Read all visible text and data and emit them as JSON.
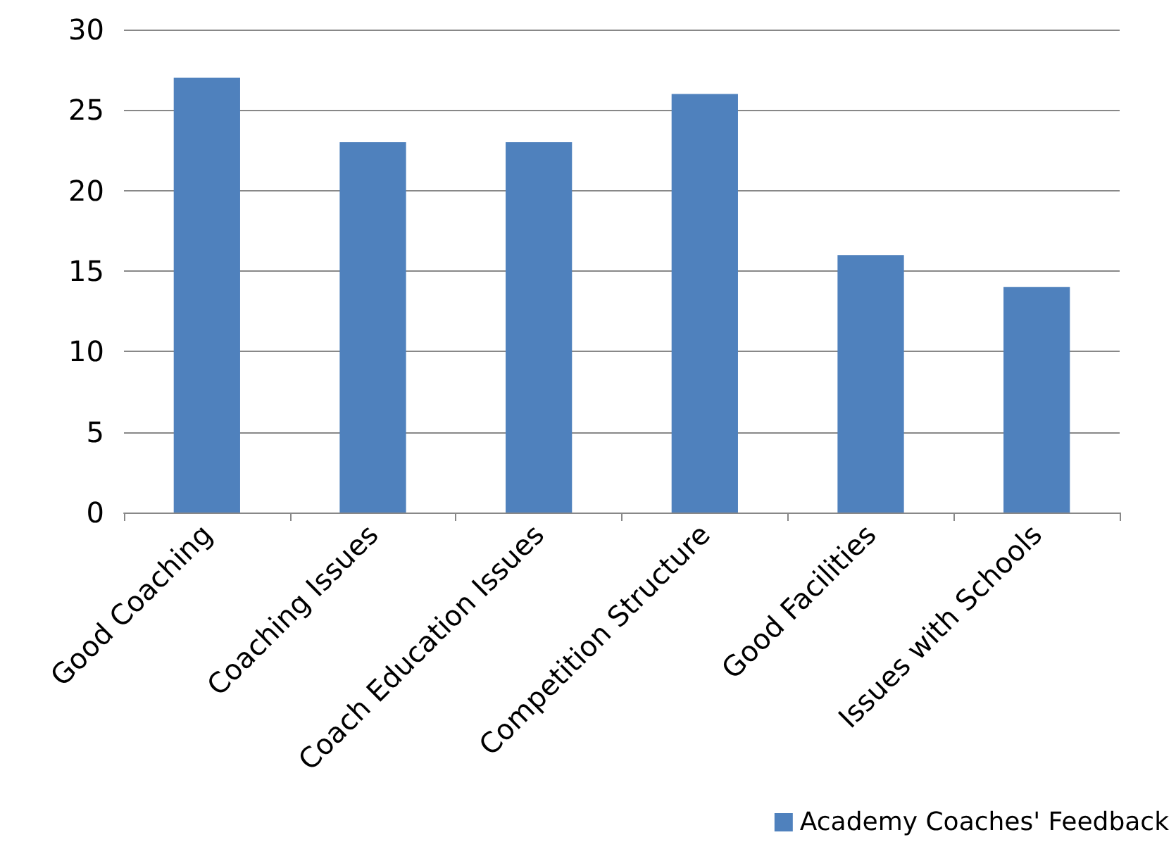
{
  "chart_data": {
    "type": "bar",
    "categories": [
      "Good Coaching",
      "Coaching Issues",
      "Coach Education Issues",
      "Competition Structure",
      "Good Facilities",
      "Issues with Schools"
    ],
    "series": [
      {
        "name": "Academy Coaches' Feedback",
        "color": "#4f81bd",
        "values": [
          27,
          23,
          23,
          26,
          16,
          14
        ]
      }
    ],
    "ylim": [
      0,
      30
    ],
    "yticks": [
      0,
      5,
      10,
      15,
      20,
      25,
      30
    ],
    "grid": "y",
    "legend": "bottom right"
  }
}
